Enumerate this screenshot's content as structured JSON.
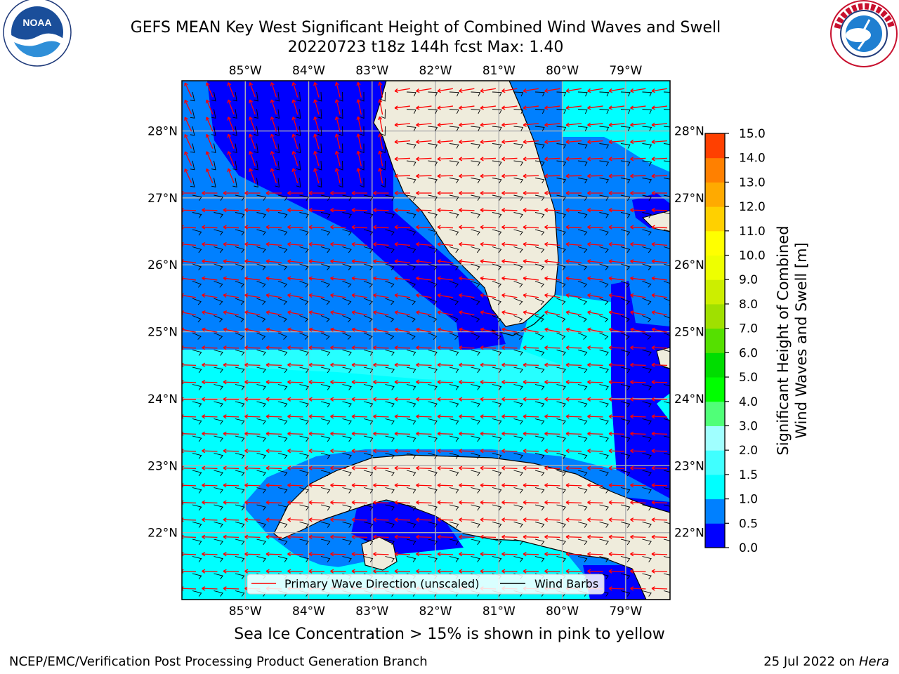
{
  "title": {
    "line1": "GEFS MEAN Key West Significant Height of Combined Wind Waves and Swell",
    "line2": "20220723 t18z 144h fcst   Max: 1.40"
  },
  "logos": {
    "left": {
      "text": "NOAA",
      "ring_text": "NATIONAL OCEANIC AND ATMOSPHERIC ADMINISTRATION · U.S. DEPARTMENT OF COMMERCE"
    },
    "right": {
      "ring_text": "NATIONAL WEATHER SERVICE"
    }
  },
  "map": {
    "lon_ticks": [
      "85°W",
      "84°W",
      "83°W",
      "82°W",
      "81°W",
      "80°W",
      "79°W"
    ],
    "lat_ticks": [
      "28°N",
      "27°N",
      "26°N",
      "25°N",
      "24°N",
      "23°N",
      "22°N"
    ],
    "lon_range": [
      -86.0,
      -78.3
    ],
    "lat_range": [
      21.0,
      28.75
    ],
    "colors": {
      "land": "#efecdc",
      "coast": "#000000",
      "grid": "#b0b0b0",
      "wave_arrow": "#ff0000",
      "wind_barb": "#000000"
    }
  },
  "legend": {
    "items": [
      {
        "label": "Primary Wave Direction (unscaled)",
        "color": "#ff0000"
      },
      {
        "label": "Wind Barbs",
        "color": "#000000"
      }
    ]
  },
  "colorbar": {
    "title_line1": "Significant Height of Combined",
    "title_line2": "Wind Waves and Swell [m]",
    "levels": [
      "0.0",
      "0.5",
      "1.0",
      "1.5",
      "2.0",
      "3.0",
      "4.0",
      "5.0",
      "6.0",
      "7.0",
      "8.0",
      "9.0",
      "10.0",
      "11.0",
      "12.0",
      "13.0",
      "14.0",
      "15.0"
    ],
    "colors": [
      "#0000ff",
      "#0080ff",
      "#00ffff",
      "#40ffff",
      "#a0ffff",
      "#50ff78",
      "#00ff00",
      "#00dd00",
      "#55e000",
      "#a0e000",
      "#ccee00",
      "#eeff00",
      "#ffff00",
      "#ffd000",
      "#ffaa00",
      "#ff8000",
      "#ff4000",
      "#ff0000"
    ]
  },
  "subcaption": "Sea Ice Concentration > 15% is shown in pink to yellow",
  "footer": {
    "left": "NCEP/EMC/Verification Post Processing Product Generation Branch",
    "right_date": "25 Jul 2022 on ",
    "right_host": "Hera"
  }
}
